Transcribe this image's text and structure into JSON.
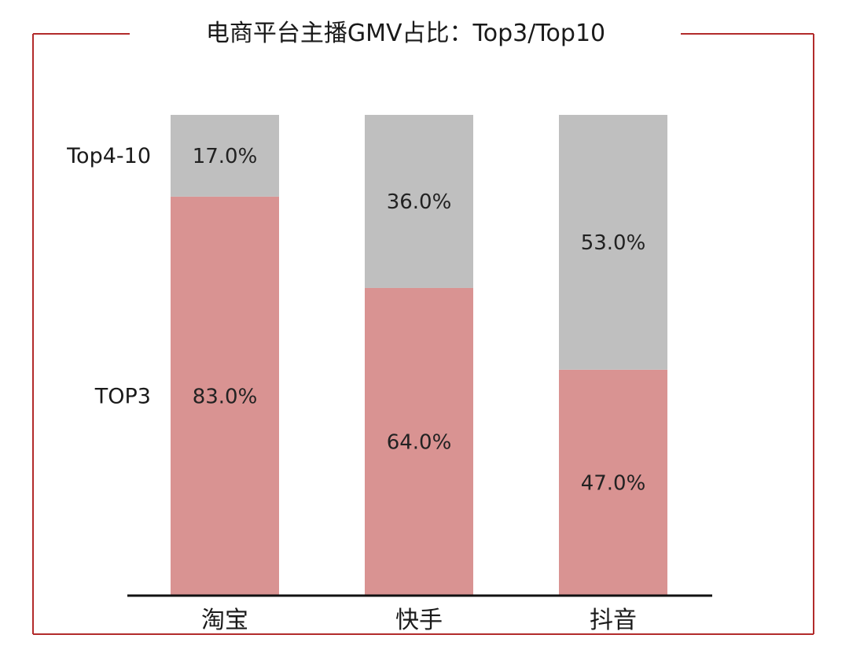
{
  "chart_data": {
    "type": "bar",
    "stacked": true,
    "title": "电商平台主播GMV占比：Top3/Top10",
    "categories": [
      "淘宝",
      "快手",
      "抖音"
    ],
    "series": [
      {
        "name": "TOP3",
        "values": [
          83.0,
          64.0,
          47.0
        ],
        "labels": [
          "83.0%",
          "64.0%",
          "47.0%"
        ],
        "color": "#d99392"
      },
      {
        "name": "Top4-10",
        "values": [
          17.0,
          36.0,
          53.0
        ],
        "labels": [
          "17.0%",
          "36.0%",
          "53.0%"
        ],
        "color": "#bfbfbf"
      }
    ],
    "ylim": [
      0,
      100
    ],
    "unit": "%",
    "grid": false,
    "legend_placement": "left, aligned with first bar segments",
    "frame_color": "#b22b2b"
  }
}
